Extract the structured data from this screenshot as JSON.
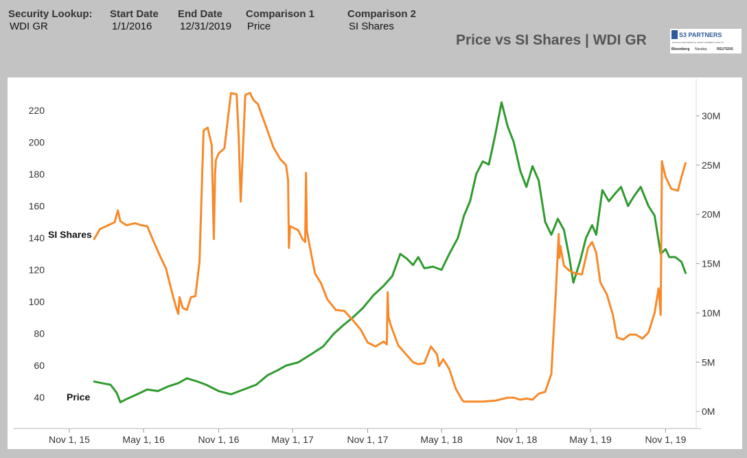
{
  "header": {
    "security_label": "Security Lookup:",
    "security_value": "WDI GR",
    "start_label": "Start Date",
    "start_value": "1/1/2016",
    "end_label": "End Date",
    "end_value": "12/31/2019",
    "comp1_label": "Comparison 1",
    "comp1_value": "Price",
    "comp2_label": "Comparison 2",
    "comp2_value": "SI Shares"
  },
  "logo": {
    "name": "S3 PARTNERS",
    "tagline": "OFFICIAL PROVIDER OF SHORT INTEREST DATA TO",
    "partners": [
      "Bloomberg",
      "Nasdaq",
      "REUTERS"
    ]
  },
  "colors": {
    "price": "#2e9a2e",
    "si": "#f7892a",
    "background": "#c3c3c3"
  },
  "chart_data": {
    "type": "line",
    "title": "Price vs SI Shares | WDI GR",
    "x_ticks": [
      "Nov 1, 15",
      "May 1, 16",
      "Nov 1, 16",
      "May 1, 17",
      "Nov 1, 17",
      "May 1, 18",
      "Nov 1, 18",
      "May 1, 19",
      "Nov 1, 19"
    ],
    "xlim": [
      "2015-09-20",
      "2020-01-15"
    ],
    "y_left": {
      "label": "Price",
      "ticks": [
        "40",
        "60",
        "80",
        "100",
        "120",
        "140",
        "160",
        "180",
        "200",
        "220"
      ],
      "ylim": [
        30,
        232
      ]
    },
    "y_right": {
      "label": "SI Shares",
      "ticks": [
        "0M",
        "5M",
        "10M",
        "15M",
        "20M",
        "25M",
        "30M"
      ],
      "ylim": [
        -200000,
        32500000
      ]
    },
    "series": [
      {
        "name": "Price",
        "axis": "left",
        "color": "#2e9a2e",
        "x": [
          "2016-01-01",
          "2016-01-20",
          "2016-02-10",
          "2016-02-25",
          "2016-03-05",
          "2016-03-20",
          "2016-04-15",
          "2016-05-10",
          "2016-06-05",
          "2016-07-01",
          "2016-07-25",
          "2016-08-15",
          "2016-09-10",
          "2016-10-01",
          "2016-11-01",
          "2016-12-01",
          "2017-01-01",
          "2017-02-01",
          "2017-03-01",
          "2017-03-25",
          "2017-04-15",
          "2017-05-15",
          "2017-06-15",
          "2017-07-15",
          "2017-08-10",
          "2017-09-01",
          "2017-09-25",
          "2017-10-20",
          "2017-11-15",
          "2017-12-10",
          "2017-12-31",
          "2018-01-20",
          "2018-02-05",
          "2018-02-20",
          "2018-03-05",
          "2018-03-20",
          "2018-04-10",
          "2018-05-01",
          "2018-05-20",
          "2018-06-10",
          "2018-06-25",
          "2018-07-10",
          "2018-07-25",
          "2018-08-10",
          "2018-08-25",
          "2018-09-10",
          "2018-09-25",
          "2018-10-10",
          "2018-10-25",
          "2018-11-10",
          "2018-11-25",
          "2018-12-10",
          "2018-12-25",
          "2019-01-10",
          "2019-01-25",
          "2019-02-10",
          "2019-02-25",
          "2019-03-10",
          "2019-03-20",
          "2019-04-05",
          "2019-04-20",
          "2019-05-05",
          "2019-05-15",
          "2019-05-30",
          "2019-06-15",
          "2019-07-01",
          "2019-07-15",
          "2019-08-01",
          "2019-08-15",
          "2019-09-01",
          "2019-09-20",
          "2019-10-05",
          "2019-10-20",
          "2019-11-01",
          "2019-11-10",
          "2019-11-25",
          "2019-12-10",
          "2019-12-20"
        ],
        "y": [
          50,
          49,
          48,
          43,
          37,
          39,
          42,
          45,
          44,
          47,
          49,
          52,
          50,
          48,
          44,
          42,
          45,
          48,
          54,
          57,
          60,
          62,
          67,
          72,
          80,
          85,
          90,
          96,
          104,
          110,
          116,
          130,
          127,
          123,
          128,
          121,
          122,
          120,
          130,
          140,
          154,
          163,
          180,
          188,
          186,
          205,
          225,
          210,
          200,
          182,
          172,
          185,
          176,
          150,
          142,
          152,
          145,
          128,
          112,
          125,
          140,
          148,
          142,
          170,
          163,
          168,
          172,
          160,
          166,
          172,
          160,
          154,
          130,
          133,
          128,
          128,
          125,
          118
        ]
      },
      {
        "name": "SI Shares",
        "axis": "right",
        "color": "#f7892a",
        "x": [
          "2016-01-01",
          "2016-01-15",
          "2016-02-10",
          "2016-02-20",
          "2016-02-28",
          "2016-03-05",
          "2016-03-20",
          "2016-04-10",
          "2016-04-25",
          "2016-05-10",
          "2016-05-25",
          "2016-06-10",
          "2016-06-25",
          "2016-07-10",
          "2016-07-20",
          "2016-07-25",
          "2016-07-28",
          "2016-08-05",
          "2016-08-15",
          "2016-08-25",
          "2016-09-05",
          "2016-09-15",
          "2016-09-25",
          "2016-10-05",
          "2016-10-15",
          "2016-10-20",
          "2016-10-23",
          "2016-10-25",
          "2016-11-01",
          "2016-11-15",
          "2016-12-01",
          "2016-12-15",
          "2016-12-20",
          "2016-12-25",
          "2017-01-05",
          "2017-01-15",
          "2017-01-18",
          "2017-01-20",
          "2017-01-23",
          "2017-01-25",
          "2017-02-05",
          "2017-02-25",
          "2017-03-15",
          "2017-04-01",
          "2017-04-15",
          "2017-04-20",
          "2017-04-22",
          "2017-04-25",
          "2017-05-05",
          "2017-05-15",
          "2017-05-25",
          "2017-06-01",
          "2017-06-03",
          "2017-06-05",
          "2017-06-10",
          "2017-06-25",
          "2017-07-10",
          "2017-07-25",
          "2017-08-15",
          "2017-09-05",
          "2017-09-25",
          "2017-10-15",
          "2017-11-01",
          "2017-11-20",
          "2017-12-10",
          "2017-12-18",
          "2017-12-20",
          "2017-12-22",
          "2017-12-28",
          "2018-01-15",
          "2018-02-05",
          "2018-02-20",
          "2018-03-05",
          "2018-03-20",
          "2018-04-05",
          "2018-04-20",
          "2018-04-25",
          "2018-05-05",
          "2018-05-20",
          "2018-06-05",
          "2018-06-20",
          "2018-06-25",
          "2018-07-05",
          "2018-07-20",
          "2018-08-10",
          "2018-09-10",
          "2018-10-10",
          "2018-10-25",
          "2018-11-10",
          "2018-11-25",
          "2018-12-10",
          "2018-12-25",
          "2019-01-10",
          "2019-01-25",
          "2019-02-05",
          "2019-02-12",
          "2019-02-14",
          "2019-02-16",
          "2019-02-25",
          "2019-03-10",
          "2019-03-25",
          "2019-04-10",
          "2019-04-25",
          "2019-05-05",
          "2019-05-15",
          "2019-05-25",
          "2019-06-10",
          "2019-06-25",
          "2019-07-05",
          "2019-07-20",
          "2019-08-05",
          "2019-08-20",
          "2019-09-05",
          "2019-09-20",
          "2019-10-05",
          "2019-10-15",
          "2019-10-20",
          "2019-10-23",
          "2019-10-25",
          "2019-11-01",
          "2019-11-15",
          "2019-12-01",
          "2019-12-10",
          "2019-12-20"
        ],
        "y": [
          17500000,
          18500000,
          19000000,
          19200000,
          20400000,
          19300000,
          18900000,
          19100000,
          18900000,
          18800000,
          17300000,
          15800000,
          14500000,
          12000000,
          10500000,
          9900000,
          11600000,
          10500000,
          10300000,
          11600000,
          11700000,
          15200000,
          28500000,
          28800000,
          27000000,
          17500000,
          24000000,
          25500000,
          26200000,
          26700000,
          32300000,
          32200000,
          27800000,
          21300000,
          32100000,
          32300000,
          32300000,
          32000000,
          31800000,
          31600000,
          31200000,
          28900000,
          26800000,
          25600000,
          25000000,
          23500000,
          16600000,
          18800000,
          18600000,
          18400000,
          17500000,
          17200000,
          24200000,
          18400000,
          17200000,
          14000000,
          13000000,
          11400000,
          10300000,
          10200000,
          9300000,
          8300000,
          7000000,
          6600000,
          7100000,
          6800000,
          12100000,
          9600000,
          8700000,
          6700000,
          5700000,
          5000000,
          4800000,
          4900000,
          6600000,
          5800000,
          4600000,
          5300000,
          4300000,
          2300000,
          1200000,
          1000000,
          1000000,
          1000000,
          1000000,
          1100000,
          1400000,
          1400000,
          1200000,
          1300000,
          1200000,
          1800000,
          2000000,
          3800000,
          12000000,
          18000000,
          15600000,
          16800000,
          14800000,
          14300000,
          14000000,
          13900000,
          16600000,
          17200000,
          16100000,
          13100000,
          11900000,
          9800000,
          7500000,
          7300000,
          7800000,
          7800000,
          7400000,
          8000000,
          10000000,
          12500000,
          9800000,
          25400000,
          25000000,
          23800000,
          22600000,
          22400000,
          23800000,
          25200000
        ]
      }
    ],
    "annotations": [
      {
        "text": "SI Shares",
        "near_series": "SI Shares"
      },
      {
        "text": "Price",
        "near_series": "Price"
      }
    ]
  }
}
